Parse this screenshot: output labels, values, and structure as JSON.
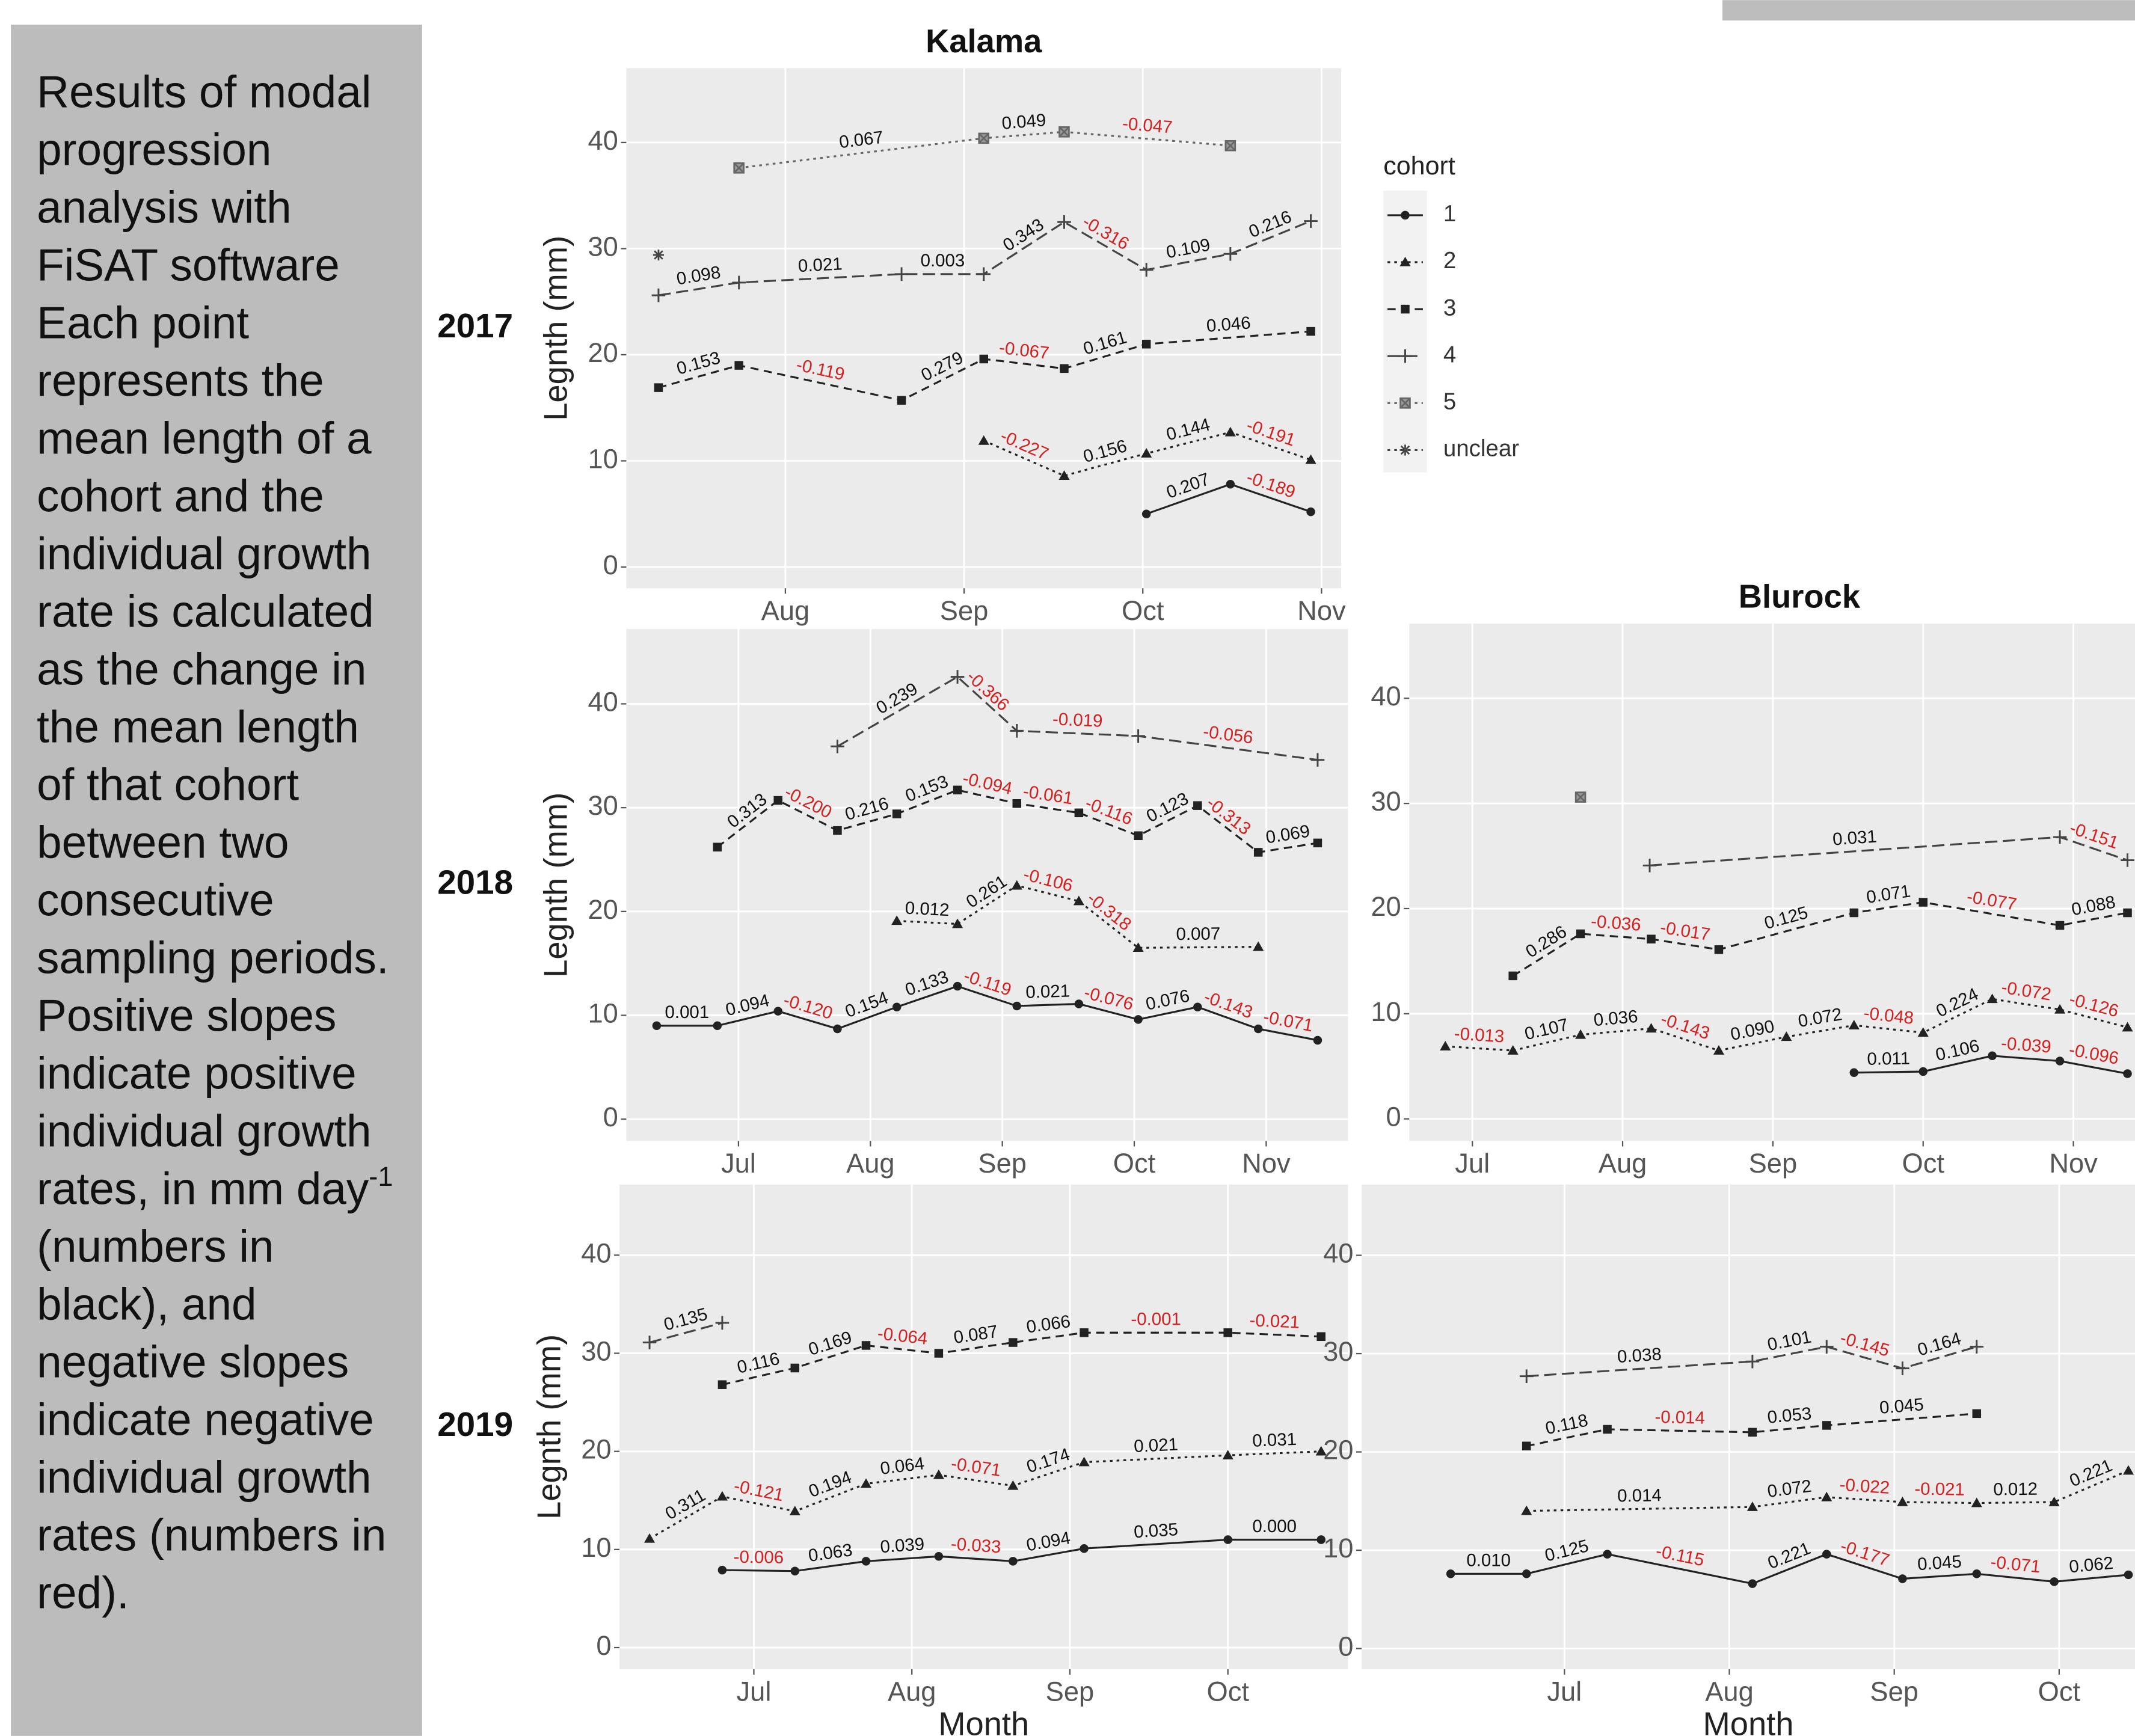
{
  "caption": {
    "lines": [
      "Results of modal",
      "progression",
      "analysis with",
      "FiSAT software",
      "Each point",
      "represents the",
      "mean length of a",
      "cohort and the",
      "individual growth",
      "rate is calculated",
      "as the change in",
      "the mean length",
      "of that cohort",
      "between two",
      "consecutive",
      "sampling periods.",
      "Positive slopes",
      "indicate positive",
      "individual growth",
      "rates, in mm day",
      "(numbers in",
      "black), and",
      "negative slopes",
      "indicate negative",
      "individual growth",
      "rates (numbers in",
      "red)."
    ],
    "superscript": "-1"
  },
  "chart_data": [
    {
      "type": "line",
      "title": "Kalama",
      "row_label": "2017",
      "ylabel": "Legnth (mm)",
      "xlim": [
        7.11,
        11.11
      ],
      "ylim": [
        -2,
        47
      ],
      "xticks": [
        {
          "value": 8,
          "label": "Aug"
        },
        {
          "value": 9,
          "label": "Sep"
        },
        {
          "value": 10,
          "label": "Oct"
        },
        {
          "value": 11,
          "label": "Nov"
        }
      ],
      "yticks": [
        0,
        10,
        20,
        30,
        40
      ],
      "grid": true,
      "legend": {
        "title": "cohort",
        "position": "right"
      },
      "series": [
        {
          "name": "1",
          "color": "#222222",
          "linestyle": "solid",
          "marker": "circle",
          "x": [
            10.02,
            10.49,
            10.94
          ],
          "values": [
            5.0,
            7.8,
            5.2
          ],
          "rate_labels": [
            "0.207",
            "-0.189"
          ]
        },
        {
          "name": "2",
          "color": "#222222",
          "linestyle": "dotted",
          "marker": "triangle",
          "x": [
            9.11,
            9.56,
            10.02,
            10.49,
            10.94
          ],
          "values": [
            11.9,
            8.6,
            10.7,
            12.7,
            10.1
          ],
          "rate_labels": [
            "-0.227",
            "0.156",
            "0.144",
            "-0.191"
          ]
        },
        {
          "name": "3",
          "color": "#222222",
          "linestyle": "dashed",
          "marker": "square",
          "x": [
            7.29,
            7.74,
            8.65,
            9.11,
            9.56,
            10.02,
            10.94
          ],
          "values": [
            16.9,
            19.0,
            15.7,
            19.6,
            18.7,
            21.0,
            22.2
          ],
          "rate_labels": [
            "0.153",
            "-0.119",
            "0.279",
            "-0.067",
            "0.161",
            "0.046"
          ]
        },
        {
          "name": "4",
          "color": "#444444",
          "linestyle": "longdash",
          "marker": "plus",
          "x": [
            7.29,
            7.74,
            8.65,
            9.11,
            9.56,
            10.02,
            10.49,
            10.94
          ],
          "values": [
            25.6,
            26.8,
            27.6,
            27.6,
            32.5,
            28.0,
            29.5,
            32.6
          ],
          "rate_labels": [
            "0.098",
            "0.021",
            "0.003",
            "0.343",
            "-0.316",
            "0.109",
            "0.216"
          ]
        },
        {
          "name": "5",
          "color": "#666666",
          "linestyle": "dotted",
          "marker": "boxx",
          "x": [
            7.74,
            9.11,
            9.56,
            10.49
          ],
          "values": [
            37.6,
            40.4,
            41.0,
            39.7
          ],
          "rate_labels": [
            "0.067",
            "0.049",
            "-0.047"
          ]
        },
        {
          "name": "unclear",
          "color": "#444444",
          "linestyle": "dotted",
          "marker": "asterisk",
          "x": [
            7.29
          ],
          "values": [
            29.4
          ]
        }
      ]
    },
    {
      "type": "line",
      "row_label": "2018",
      "ylabel": "Legnth (mm)",
      "xlim": [
        6.15,
        11.62
      ],
      "ylim": [
        -2.1,
        47.2
      ],
      "xticks": [
        {
          "value": 7,
          "label": "Jul"
        },
        {
          "value": 8,
          "label": "Aug"
        },
        {
          "value": 9,
          "label": "Sep"
        },
        {
          "value": 10,
          "label": "Oct"
        },
        {
          "value": 11,
          "label": "Nov"
        }
      ],
      "yticks": [
        0,
        10,
        20,
        30,
        40
      ],
      "grid": true,
      "series": [
        {
          "name": "1",
          "color": "#222222",
          "x": [
            6.38,
            6.84,
            7.3,
            7.75,
            8.2,
            8.66,
            9.11,
            9.58,
            10.03,
            10.48,
            10.94,
            11.39
          ],
          "values": [
            9.0,
            9.0,
            10.4,
            8.7,
            10.8,
            12.8,
            10.9,
            11.1,
            9.6,
            10.8,
            8.7,
            7.6
          ],
          "rate_labels": [
            "0.001",
            "0.094",
            "-0.120",
            "0.154",
            "0.133",
            "-0.119",
            "0.021",
            "-0.076",
            "0.076",
            "-0.143",
            "-0.071"
          ]
        },
        {
          "name": "2",
          "color": "#222222",
          "x": [
            8.2,
            8.66,
            9.11,
            9.58,
            10.03,
            10.94
          ],
          "values": [
            19.1,
            18.8,
            22.5,
            21.0,
            16.5,
            16.6
          ],
          "rate_labels": [
            "0.012",
            "0.261",
            "-0.106",
            "-0.318",
            "0.007"
          ]
        },
        {
          "name": "3",
          "color": "#222222",
          "x": [
            6.84,
            7.3,
            7.75,
            8.2,
            8.66,
            9.11,
            9.58,
            10.03,
            10.48,
            10.94,
            11.39
          ],
          "values": [
            26.2,
            30.7,
            27.8,
            29.4,
            31.7,
            30.4,
            29.5,
            27.3,
            30.2,
            25.7,
            26.6
          ],
          "rate_labels": [
            "0.313",
            "-0.200",
            "0.216",
            "0.153",
            "-0.094",
            "-0.061",
            "-0.116",
            "0.123",
            "-0.313",
            "0.069"
          ]
        },
        {
          "name": "4",
          "color": "#444444",
          "x": [
            7.75,
            8.66,
            9.11,
            10.03,
            11.39
          ],
          "values": [
            35.9,
            42.6,
            37.4,
            36.9,
            34.6
          ],
          "rate_labels": [
            "0.239",
            "-0.366",
            "-0.019",
            "-0.056"
          ]
        }
      ]
    },
    {
      "type": "line",
      "title": "Blurock",
      "xlim": [
        6.58,
        11.41
      ],
      "ylim": [
        -2.1,
        47.1
      ],
      "xticks": [
        {
          "value": 7,
          "label": "Jul"
        },
        {
          "value": 8,
          "label": "Aug"
        },
        {
          "value": 9,
          "label": "Sep"
        },
        {
          "value": 10,
          "label": "Oct"
        },
        {
          "value": 11,
          "label": "Nov"
        }
      ],
      "yticks": [
        0,
        10,
        20,
        30,
        40
      ],
      "grid": true,
      "series": [
        {
          "name": "1",
          "color": "#222222",
          "x": [
            9.54,
            10.0,
            10.46,
            10.91,
            11.36
          ],
          "values": [
            4.4,
            4.5,
            6.0,
            5.5,
            4.3
          ],
          "rate_labels": [
            "0.011",
            "0.106",
            "-0.039",
            "-0.096"
          ]
        },
        {
          "name": "2",
          "color": "#222222",
          "x": [
            6.82,
            7.27,
            7.72,
            8.19,
            8.64,
            9.09,
            9.54,
            10.0,
            10.46,
            10.91,
            11.36
          ],
          "values": [
            6.9,
            6.5,
            8.0,
            8.6,
            6.5,
            7.8,
            8.9,
            8.2,
            11.4,
            10.4,
            8.7
          ],
          "rate_labels": [
            "-0.013",
            "0.107",
            "0.036",
            "-0.143",
            "0.090",
            "0.072",
            "-0.048",
            "0.224",
            "-0.072",
            "-0.126"
          ]
        },
        {
          "name": "3",
          "color": "#222222",
          "x": [
            7.27,
            7.72,
            8.19,
            8.64,
            9.54,
            10.0,
            10.91,
            11.36
          ],
          "values": [
            13.6,
            17.6,
            17.1,
            16.1,
            19.6,
            20.6,
            18.4,
            19.6
          ],
          "rate_labels": [
            "0.286",
            "-0.036",
            "-0.017",
            "0.125",
            "0.071",
            "-0.077",
            "0.088"
          ]
        },
        {
          "name": "4",
          "color": "#444444",
          "x": [
            8.18,
            10.91,
            11.36
          ],
          "values": [
            24.1,
            26.8,
            24.6
          ],
          "rate_labels": [
            "0.031",
            "-0.151"
          ]
        },
        {
          "name": "5",
          "color": "#666666",
          "x": [
            7.72
          ],
          "values": [
            30.6
          ]
        }
      ]
    },
    {
      "type": "line",
      "row_label": "2019",
      "ylabel": "Legnth (mm)",
      "xlabel": "Month",
      "xlim": [
        6.15,
        10.76
      ],
      "ylim": [
        -2.2,
        47.2
      ],
      "xticks": [
        {
          "value": 7,
          "label": "Jul"
        },
        {
          "value": 8,
          "label": "Aug"
        },
        {
          "value": 9,
          "label": "Sep"
        },
        {
          "value": 10,
          "label": "Oct"
        }
      ],
      "yticks": [
        0,
        10,
        20,
        30,
        40
      ],
      "grid": true,
      "series": [
        {
          "name": "1",
          "color": "#222222",
          "x": [
            6.8,
            7.26,
            7.71,
            8.17,
            8.64,
            9.09,
            10.0,
            10.59
          ],
          "values": [
            7.9,
            7.8,
            8.8,
            9.3,
            8.8,
            10.1,
            11.0,
            11.0
          ],
          "rate_labels": [
            "-0.006",
            "0.063",
            "0.039",
            "-0.033",
            "0.094",
            "0.035",
            "0.000"
          ]
        },
        {
          "name": "2",
          "color": "#222222",
          "x": [
            6.34,
            6.8,
            7.26,
            7.71,
            8.17,
            8.64,
            9.09,
            10.0,
            10.59
          ],
          "values": [
            11.1,
            15.4,
            13.9,
            16.7,
            17.6,
            16.5,
            18.9,
            19.6,
            20.0
          ],
          "rate_labels": [
            "0.311",
            "-0.121",
            "0.194",
            "0.064",
            "-0.071",
            "0.174",
            "0.021",
            "0.031"
          ]
        },
        {
          "name": "3",
          "color": "#222222",
          "x": [
            6.8,
            7.26,
            7.71,
            8.17,
            8.64,
            9.09,
            10.0,
            10.59
          ],
          "values": [
            26.8,
            28.5,
            30.8,
            30.0,
            31.1,
            32.1,
            32.1,
            31.7
          ],
          "rate_labels": [
            "0.116",
            "0.169",
            "-0.064",
            "0.087",
            "0.066",
            "-0.001",
            "-0.021"
          ]
        },
        {
          "name": "4",
          "color": "#444444",
          "x": [
            6.34,
            6.8
          ],
          "values": [
            31.1,
            33.1
          ],
          "rate_labels": [
            "0.135"
          ]
        }
      ]
    },
    {
      "type": "line",
      "xlabel": "Month",
      "xlim": [
        5.77,
        10.46
      ],
      "ylim": [
        -2.1,
        47.2
      ],
      "xticks": [
        {
          "value": 7,
          "label": "Jul"
        },
        {
          "value": 8,
          "label": "Aug"
        },
        {
          "value": 9,
          "label": "Sep"
        },
        {
          "value": 10,
          "label": "Oct"
        }
      ],
      "yticks": [
        0,
        10,
        20,
        30,
        40
      ],
      "grid": true,
      "series": [
        {
          "name": "1",
          "color": "#222222",
          "x": [
            6.31,
            6.77,
            7.26,
            8.14,
            8.59,
            9.05,
            9.5,
            9.97,
            10.42
          ],
          "values": [
            7.6,
            7.6,
            9.6,
            6.6,
            9.6,
            7.1,
            7.6,
            6.8,
            7.5
          ],
          "rate_labels": [
            "0.010",
            "0.125",
            "-0.115",
            "0.221",
            "-0.177",
            "0.045",
            "-0.071",
            "0.062"
          ]
        },
        {
          "name": "2",
          "color": "#222222",
          "x": [
            6.77,
            8.14,
            8.59,
            9.05,
            9.5,
            9.97,
            10.42
          ],
          "values": [
            14.0,
            14.4,
            15.4,
            14.9,
            14.8,
            14.9,
            18.1
          ],
          "rate_labels": [
            "0.014",
            "0.072",
            "-0.022",
            "-0.021",
            "0.012",
            "0.221"
          ]
        },
        {
          "name": "3",
          "color": "#222222",
          "x": [
            6.77,
            7.26,
            8.14,
            8.59,
            9.5
          ],
          "values": [
            20.6,
            22.3,
            22.0,
            22.7,
            23.9
          ],
          "rate_labels": [
            "0.118",
            "-0.014",
            "0.053",
            "0.045"
          ]
        },
        {
          "name": "4",
          "color": "#444444",
          "x": [
            6.77,
            8.14,
            8.59,
            9.05,
            9.5
          ],
          "values": [
            27.7,
            29.2,
            30.7,
            28.5,
            30.7
          ],
          "rate_labels": [
            "0.038",
            "0.101",
            "-0.145",
            "0.164"
          ]
        }
      ]
    }
  ]
}
